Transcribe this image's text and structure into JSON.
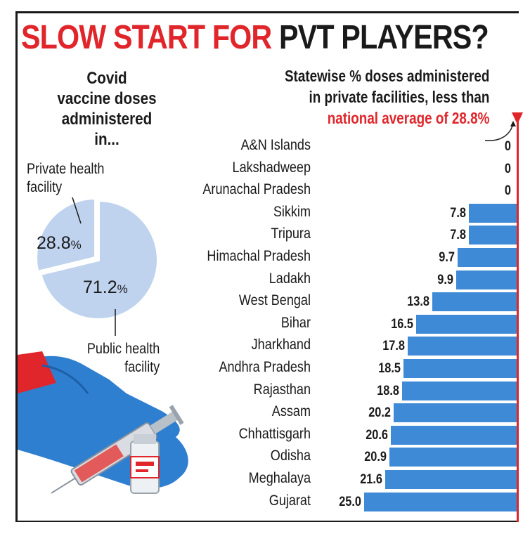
{
  "headline": {
    "red_part": "SLOW START FOR",
    "black_part": "PVT PLAYERS?"
  },
  "pie": {
    "caption_lines": [
      "Covid",
      "vaccine doses",
      "administered",
      "in..."
    ],
    "private_label_lines": [
      "Private health",
      "facility"
    ],
    "public_label_lines": [
      "Public health",
      "facility"
    ],
    "private_value": 28.8,
    "public_value": 71.2,
    "private_text": "28.8",
    "public_text": "71.2",
    "pct_sign": "%",
    "colors": {
      "private": "#bfd3ee",
      "public": "#bfd3ee",
      "separator": "#ffffff"
    }
  },
  "chart_data": {
    "type": "bar",
    "orientation": "horizontal",
    "title": "Statewise % doses administered in private facilities, less than national average of 28.8%",
    "title_lines": [
      "Statewise % doses administered",
      "in private facilities, less than"
    ],
    "title_highlight": "national average of 28.8%",
    "reference_value": 28.8,
    "xlim": [
      0,
      28.8
    ],
    "categories": [
      "A&N Islands",
      "Lakshadweep",
      "Arunachal Pradesh",
      "Sikkim",
      "Tripura",
      "Himachal Pradesh",
      "Ladakh",
      "West Bengal",
      "Bihar",
      "Jharkhand",
      "Andhra Pradesh",
      "Rajasthan",
      "Assam",
      "Chhattisgarh",
      "Odisha",
      "Meghalaya",
      "Gujarat"
    ],
    "values": [
      0,
      0,
      0,
      7.8,
      7.8,
      9.7,
      9.9,
      13.8,
      16.5,
      17.8,
      18.5,
      18.8,
      20.2,
      20.6,
      20.9,
      21.6,
      25.0
    ],
    "value_labels": [
      "0",
      "0",
      "0",
      "7.8",
      "7.8",
      "9.7",
      "9.9",
      "13.8",
      "16.5",
      "17.8",
      "18.5",
      "18.8",
      "20.2",
      "20.6",
      "20.9",
      "21.6",
      "25.0"
    ],
    "bar_color": "#3e8ad6",
    "reference_color": "#e0262b",
    "grid": false,
    "legend": "none"
  }
}
